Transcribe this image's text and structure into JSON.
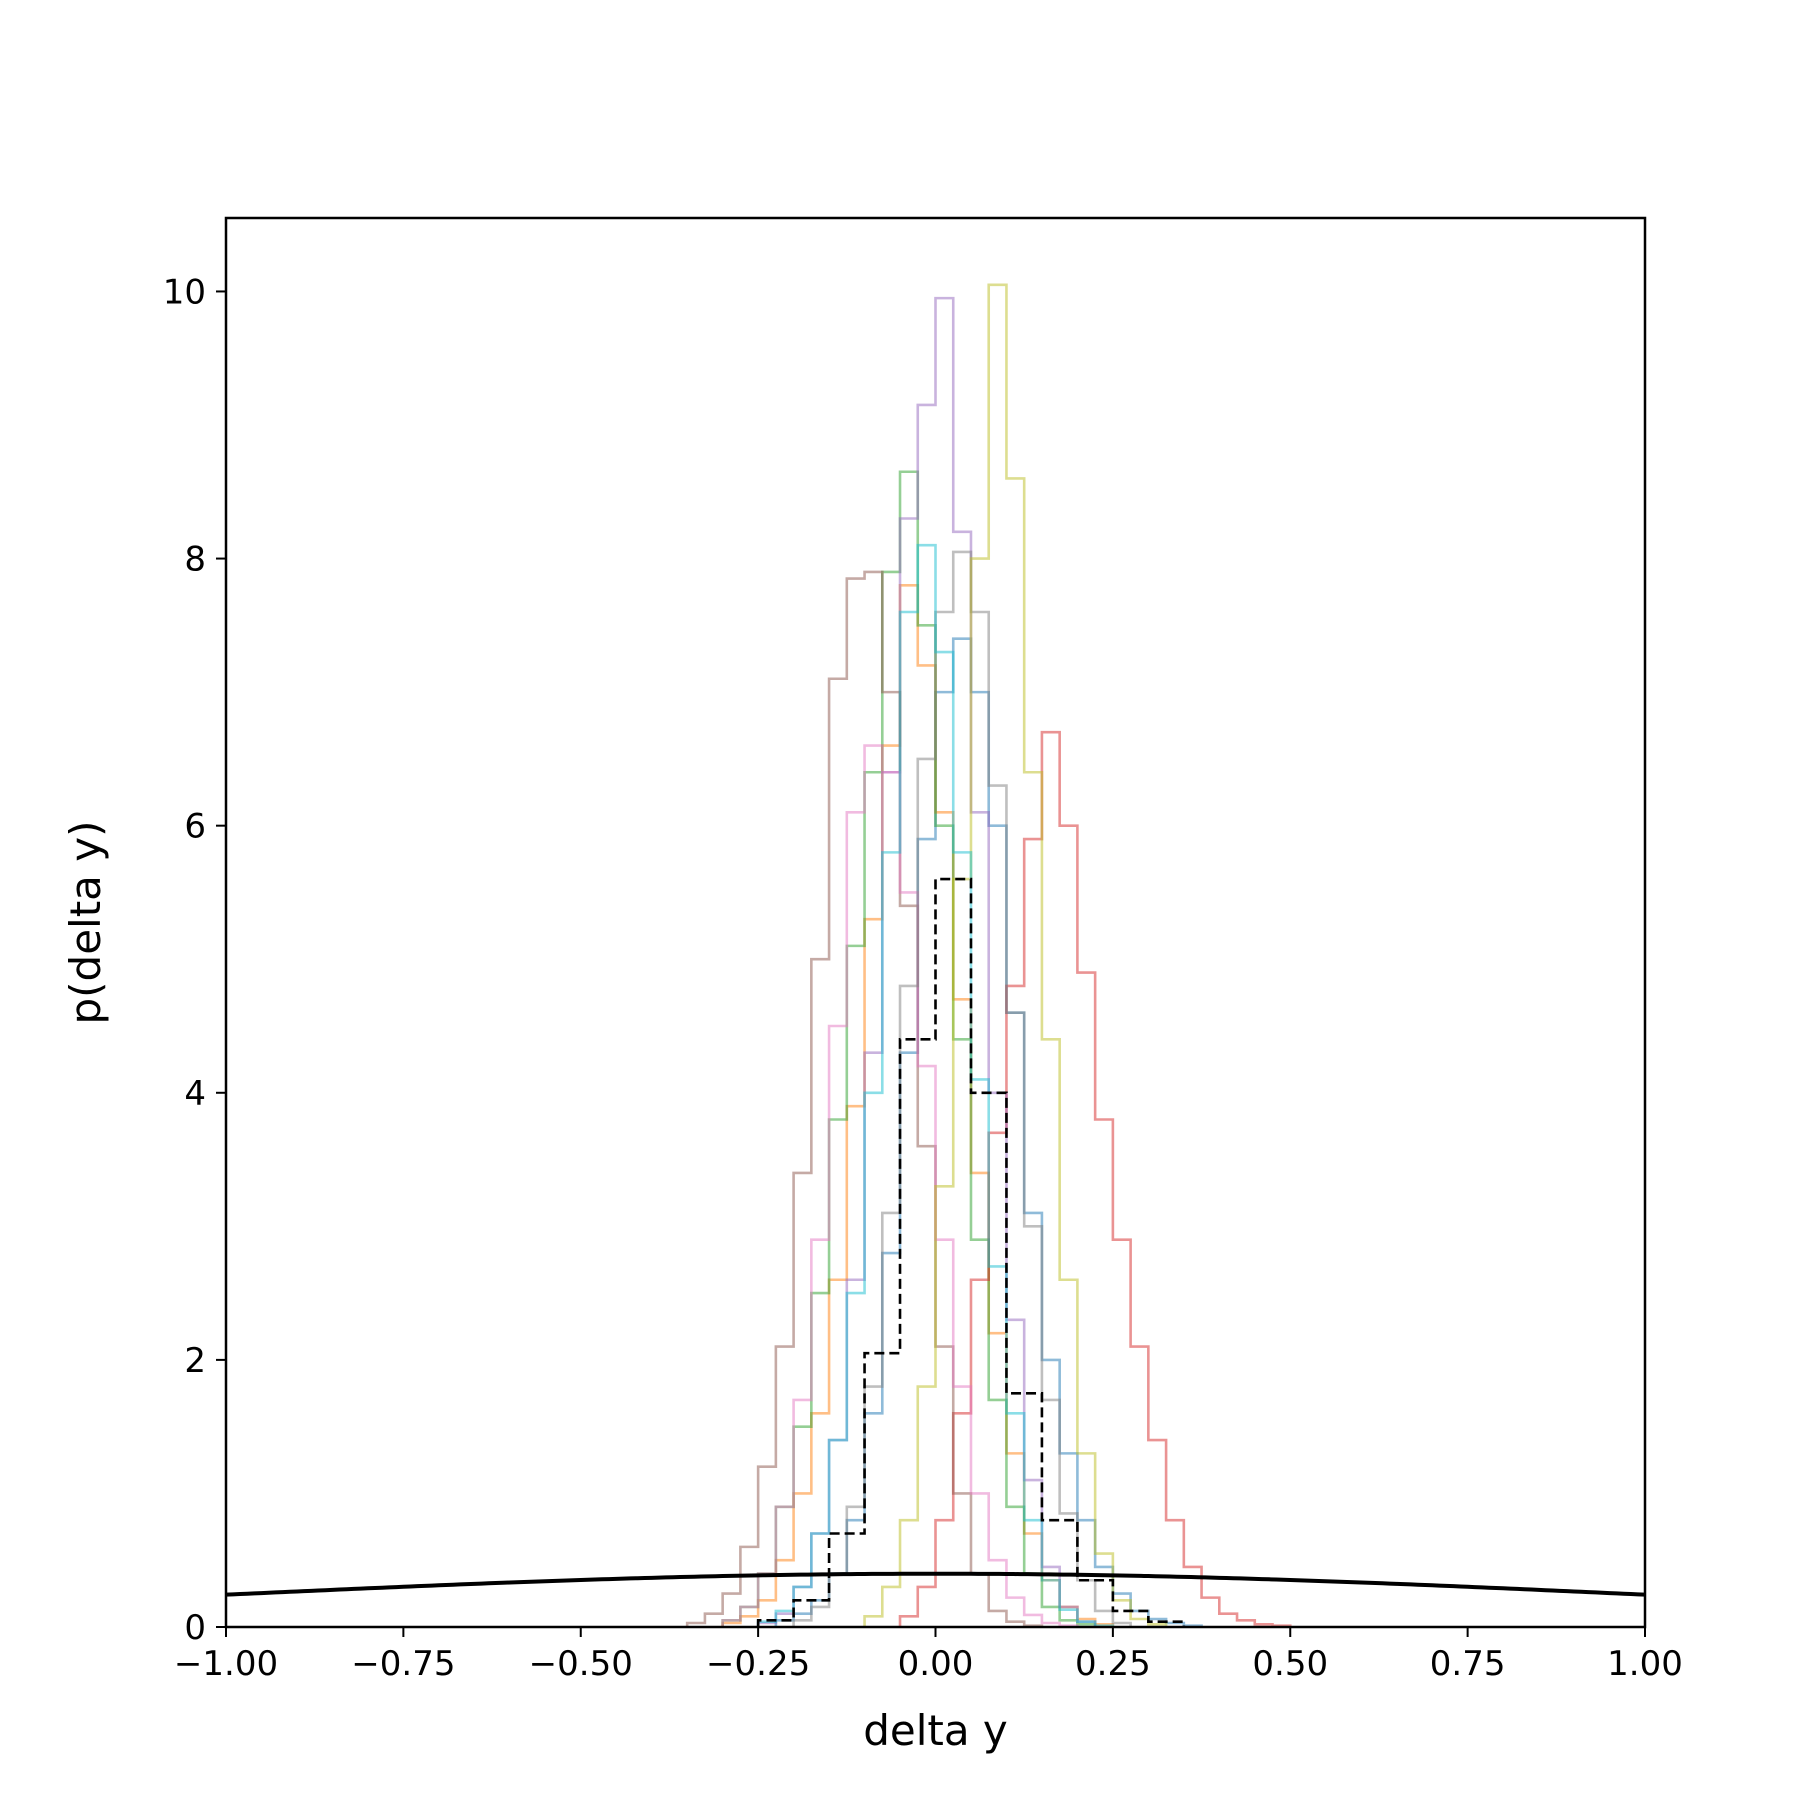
{
  "chart_data": {
    "type": "histogram",
    "title": "",
    "xlabel": "delta y",
    "ylabel": "p(delta y)",
    "xlim": [
      -1.0,
      1.0
    ],
    "ylim": [
      0,
      10.55
    ],
    "xticks": [
      -1.0,
      -0.75,
      -0.5,
      -0.25,
      0.0,
      0.25,
      0.5,
      0.75,
      1.0
    ],
    "xtick_labels": [
      "−1.00",
      "−0.75",
      "−0.50",
      "−0.25",
      "0.00",
      "0.25",
      "0.50",
      "0.75",
      "1.00"
    ],
    "yticks": [
      0,
      2,
      4,
      6,
      8,
      10
    ],
    "ytick_labels": [
      "0",
      "2",
      "4",
      "6",
      "8",
      "10"
    ],
    "grid": false,
    "legend": false,
    "series": [
      {
        "style": "step",
        "color": "#1f77b4",
        "opacity": 0.5,
        "bins": [
          -0.225,
          -0.2,
          -0.175,
          -0.15,
          -0.125,
          -0.1,
          -0.075,
          -0.05,
          -0.025,
          0.0,
          0.025,
          0.05,
          0.075,
          0.1,
          0.125,
          0.15,
          0.175,
          0.2,
          0.225,
          0.25,
          0.275,
          0.3,
          0.325,
          0.35,
          0.375
        ],
        "values": [
          0.05,
          0.1,
          0.2,
          0.4,
          0.8,
          1.6,
          2.8,
          4.3,
          5.9,
          7.0,
          7.4,
          7.0,
          6.0,
          4.6,
          3.1,
          2.0,
          1.3,
          0.8,
          0.45,
          0.25,
          0.12,
          0.06,
          0.03,
          0.01
        ]
      },
      {
        "style": "step",
        "color": "#ff7f0e",
        "opacity": 0.5,
        "bins": [
          -0.3,
          -0.275,
          -0.25,
          -0.225,
          -0.2,
          -0.175,
          -0.15,
          -0.125,
          -0.1,
          -0.075,
          -0.05,
          -0.025,
          0.0,
          0.025,
          0.05,
          0.075,
          0.1,
          0.125,
          0.15,
          0.175,
          0.2,
          0.225,
          0.25
        ],
        "values": [
          0.03,
          0.08,
          0.2,
          0.5,
          1.0,
          1.6,
          2.6,
          3.9,
          5.3,
          6.6,
          7.8,
          7.2,
          6.1,
          4.7,
          3.4,
          2.2,
          1.3,
          0.7,
          0.35,
          0.15,
          0.06,
          0.02
        ]
      },
      {
        "style": "step",
        "color": "#2ca02c",
        "opacity": 0.5,
        "bins": [
          -0.3,
          -0.275,
          -0.25,
          -0.225,
          -0.2,
          -0.175,
          -0.15,
          -0.125,
          -0.1,
          -0.075,
          -0.05,
          -0.025,
          0.0,
          0.025,
          0.05,
          0.075,
          0.1,
          0.125,
          0.15,
          0.175,
          0.2,
          0.225
        ],
        "values": [
          0.05,
          0.15,
          0.4,
          0.9,
          1.5,
          2.5,
          3.8,
          5.1,
          6.4,
          7.9,
          8.65,
          7.5,
          6.0,
          4.4,
          2.9,
          1.7,
          0.9,
          0.4,
          0.15,
          0.05,
          0.02
        ]
      },
      {
        "style": "step",
        "color": "#d62728",
        "opacity": 0.5,
        "bins": [
          -0.05,
          -0.025,
          0.0,
          0.025,
          0.05,
          0.075,
          0.1,
          0.125,
          0.15,
          0.175,
          0.2,
          0.225,
          0.25,
          0.275,
          0.3,
          0.325,
          0.35,
          0.375,
          0.4,
          0.425,
          0.45,
          0.475,
          0.5
        ],
        "values": [
          0.08,
          0.3,
          0.8,
          1.6,
          2.6,
          3.7,
          4.8,
          5.9,
          6.7,
          6.0,
          4.9,
          3.8,
          2.9,
          2.1,
          1.4,
          0.8,
          0.45,
          0.22,
          0.1,
          0.05,
          0.02,
          0.01
        ]
      },
      {
        "style": "step",
        "color": "#9467bd",
        "opacity": 0.5,
        "bins": [
          -0.25,
          -0.225,
          -0.2,
          -0.175,
          -0.15,
          -0.125,
          -0.1,
          -0.075,
          -0.05,
          -0.025,
          0.0,
          0.025,
          0.05,
          0.075,
          0.1,
          0.125,
          0.15,
          0.175,
          0.2,
          0.225
        ],
        "values": [
          0.03,
          0.1,
          0.3,
          0.7,
          1.4,
          2.6,
          4.3,
          6.4,
          8.3,
          9.15,
          9.95,
          8.2,
          6.1,
          4.0,
          2.3,
          1.1,
          0.45,
          0.15,
          0.04
        ]
      },
      {
        "style": "step",
        "color": "#8c564b",
        "opacity": 0.5,
        "bins": [
          -0.35,
          -0.325,
          -0.3,
          -0.275,
          -0.25,
          -0.225,
          -0.2,
          -0.175,
          -0.15,
          -0.125,
          -0.1,
          -0.075,
          -0.05,
          -0.025,
          0.0,
          0.025,
          0.05,
          0.075,
          0.1,
          0.125,
          0.15
        ],
        "values": [
          0.03,
          0.1,
          0.25,
          0.6,
          1.2,
          2.1,
          3.4,
          5.0,
          7.1,
          7.85,
          7.9,
          7.0,
          5.4,
          3.6,
          2.1,
          1.0,
          0.4,
          0.12,
          0.04,
          0.01
        ]
      },
      {
        "style": "step",
        "color": "#e377c2",
        "opacity": 0.5,
        "bins": [
          -0.3,
          -0.275,
          -0.25,
          -0.225,
          -0.2,
          -0.175,
          -0.15,
          -0.125,
          -0.1,
          -0.075,
          -0.05,
          -0.025,
          0.0,
          0.025,
          0.05,
          0.075,
          0.1,
          0.125,
          0.15,
          0.175,
          0.2
        ],
        "values": [
          0.05,
          0.15,
          0.4,
          0.9,
          1.7,
          2.9,
          4.5,
          6.1,
          6.6,
          6.4,
          5.5,
          4.2,
          2.9,
          1.8,
          1.0,
          0.5,
          0.22,
          0.09,
          0.03,
          0.01
        ]
      },
      {
        "style": "step",
        "color": "#7f7f7f",
        "opacity": 0.5,
        "bins": [
          -0.2,
          -0.175,
          -0.15,
          -0.125,
          -0.1,
          -0.075,
          -0.05,
          -0.025,
          0.0,
          0.025,
          0.05,
          0.075,
          0.1,
          0.125,
          0.15,
          0.175,
          0.2,
          0.225,
          0.25,
          0.275
        ],
        "values": [
          0.05,
          0.15,
          0.4,
          0.9,
          1.8,
          3.1,
          4.8,
          6.5,
          7.6,
          8.05,
          7.6,
          6.3,
          4.6,
          3.0,
          1.7,
          0.85,
          0.35,
          0.12,
          0.03
        ]
      },
      {
        "style": "step",
        "color": "#bcbd22",
        "opacity": 0.5,
        "bins": [
          -0.1,
          -0.075,
          -0.05,
          -0.025,
          0.0,
          0.025,
          0.05,
          0.075,
          0.1,
          0.125,
          0.15,
          0.175,
          0.2,
          0.225,
          0.25,
          0.275,
          0.3,
          0.325
        ],
        "values": [
          0.08,
          0.3,
          0.8,
          1.8,
          3.3,
          5.6,
          8.0,
          10.05,
          8.6,
          6.4,
          4.4,
          2.6,
          1.3,
          0.55,
          0.2,
          0.06,
          0.02
        ]
      },
      {
        "style": "step",
        "color": "#17becf",
        "opacity": 0.5,
        "bins": [
          -0.25,
          -0.225,
          -0.2,
          -0.175,
          -0.15,
          -0.125,
          -0.1,
          -0.075,
          -0.05,
          -0.025,
          0.0,
          0.025,
          0.05,
          0.075,
          0.1,
          0.125,
          0.15,
          0.175,
          0.2,
          0.225,
          0.25
        ],
        "values": [
          0.04,
          0.12,
          0.3,
          0.7,
          1.4,
          2.5,
          4.0,
          5.8,
          7.6,
          8.1,
          7.3,
          5.8,
          4.1,
          2.7,
          1.6,
          0.8,
          0.35,
          0.13,
          0.04,
          0.01
        ]
      },
      {
        "style": "step-dashed",
        "color": "#000000",
        "opacity": 1.0,
        "bins": [
          -0.25,
          -0.2,
          -0.15,
          -0.1,
          -0.05,
          0.0,
          0.05,
          0.1,
          0.15,
          0.2,
          0.25,
          0.3,
          0.35
        ],
        "values": [
          0.05,
          0.2,
          0.7,
          2.05,
          4.4,
          5.6,
          4.0,
          1.75,
          0.8,
          0.35,
          0.12,
          0.04
        ]
      },
      {
        "style": "line",
        "color": "#000000",
        "opacity": 1.0,
        "description_source": "normal density curve",
        "mean": 0.0,
        "sigma": 1.0,
        "x_range": [
          -1.0,
          1.0
        ]
      }
    ]
  }
}
